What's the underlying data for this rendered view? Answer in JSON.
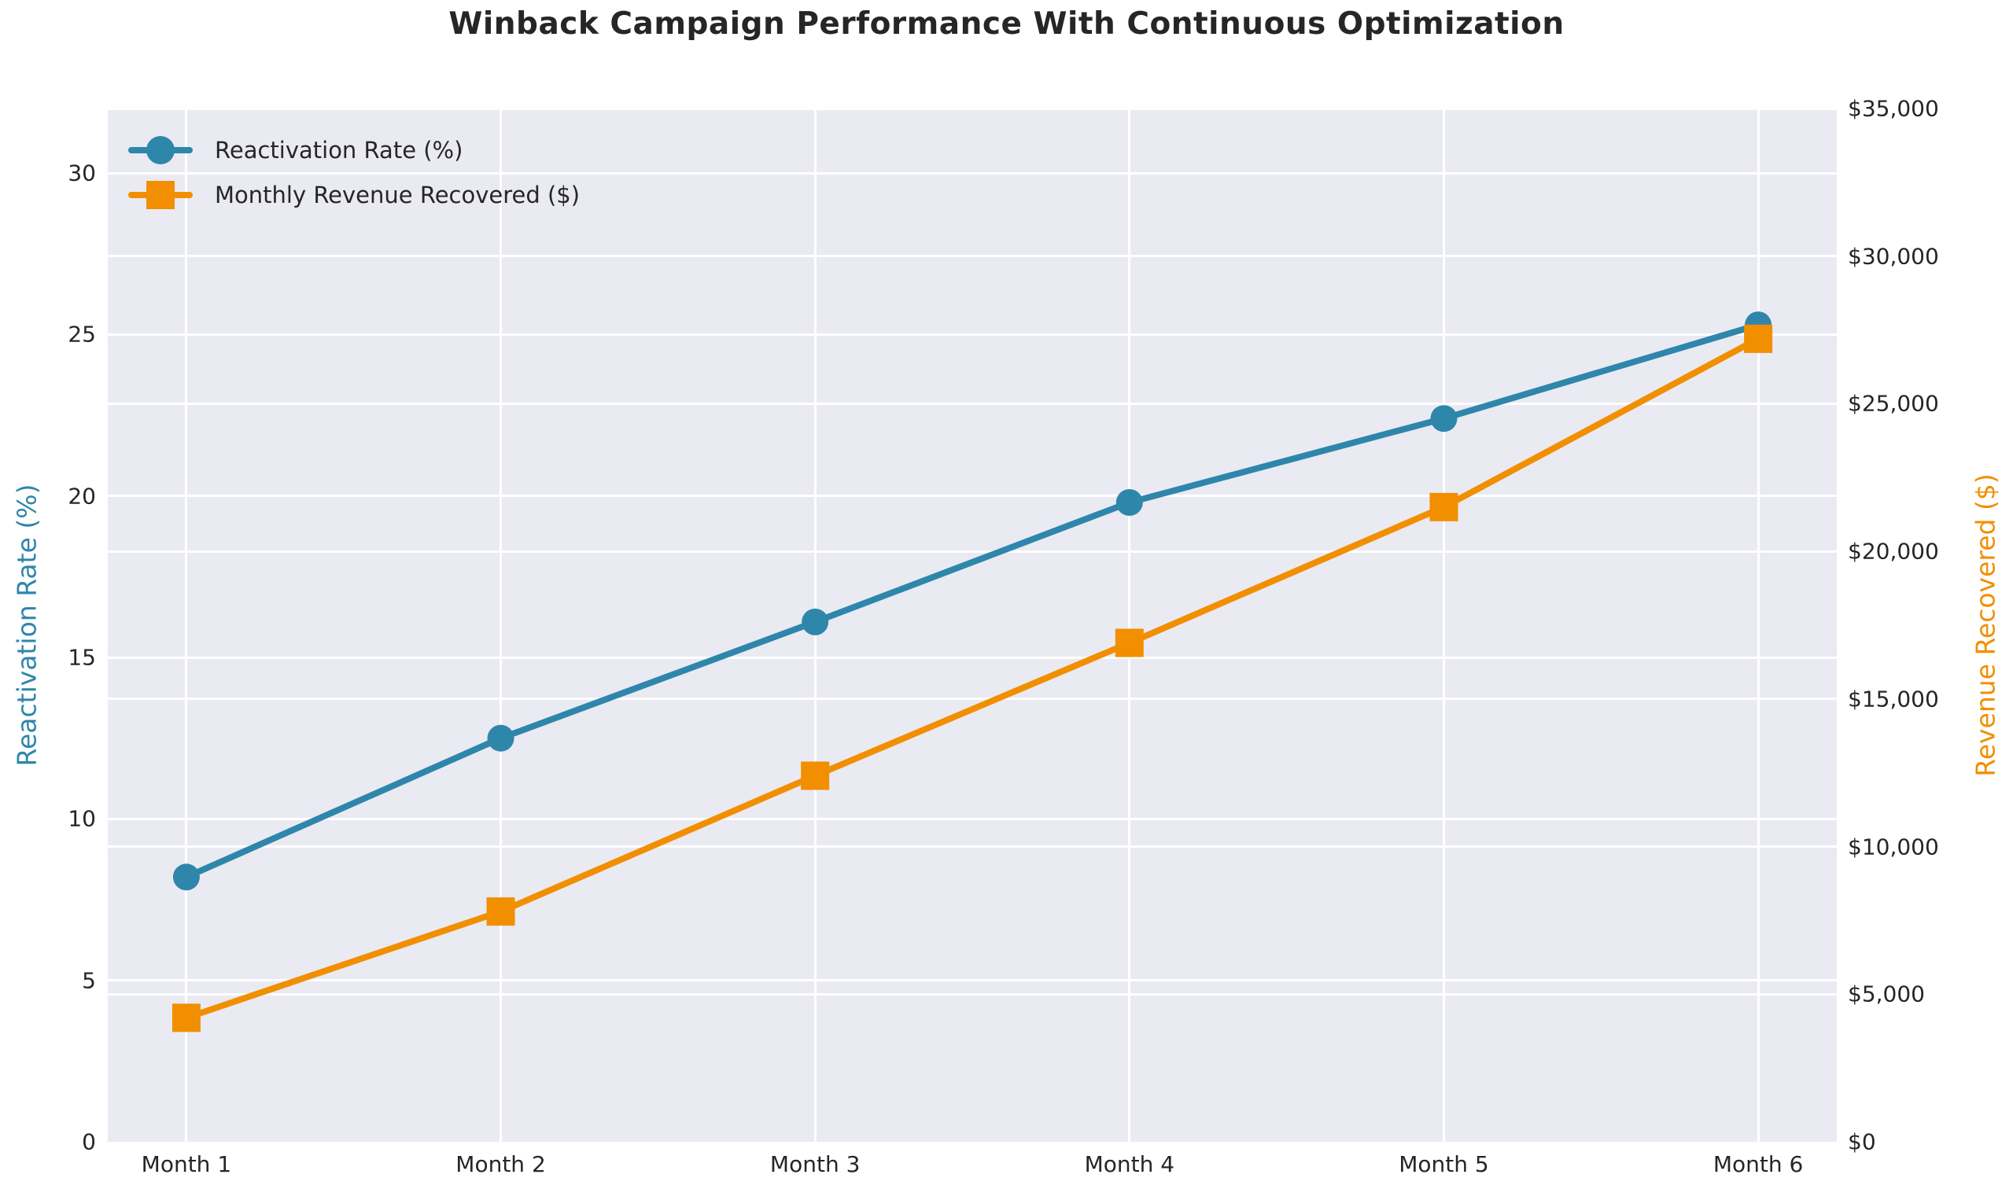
{
  "chart_data": {
    "type": "line",
    "title": "Winback Campaign Performance With Continuous Optimization",
    "categories": [
      "Month 1",
      "Month 2",
      "Month 3",
      "Month 4",
      "Month 5",
      "Month 6"
    ],
    "series": [
      {
        "name": "Reactivation Rate (%)",
        "axis": "left",
        "color": "#2E86AB",
        "marker": "circle",
        "values": [
          8.2,
          12.5,
          16.1,
          19.8,
          22.4,
          25.3
        ]
      },
      {
        "name": "Monthly Revenue Recovered ($)",
        "axis": "right",
        "color": "#F18F01",
        "marker": "square",
        "values": [
          4200,
          7800,
          12400,
          16900,
          21500,
          27200
        ]
      }
    ],
    "axes": {
      "left": {
        "label": "Reactivation Rate (%)",
        "color": "#2E86AB",
        "min": 0,
        "max": 32,
        "ticks": [
          0,
          5,
          10,
          15,
          20,
          25,
          30
        ],
        "tick_labels": [
          "0",
          "5",
          "10",
          "15",
          "20",
          "25",
          "30"
        ]
      },
      "right": {
        "label": "Revenue Recovered ($)",
        "color": "#F18F01",
        "min": 0,
        "max": 35000,
        "ticks": [
          0,
          5000,
          10000,
          15000,
          20000,
          25000,
          30000,
          35000
        ],
        "tick_labels": [
          "$0",
          "$5,000",
          "$10,000",
          "$15,000",
          "$20,000",
          "$25,000",
          "$30,000",
          "$35,000"
        ]
      }
    },
    "legend": {
      "position": "upper-left",
      "entries": [
        "Reactivation Rate (%)",
        "Monthly Revenue Recovered ($)"
      ]
    },
    "grid": true,
    "x_margin_frac": 0.05,
    "colors": {
      "plot_bg": "#EAEAF2",
      "grid": "#FFFFFF",
      "text": "#262626"
    }
  }
}
